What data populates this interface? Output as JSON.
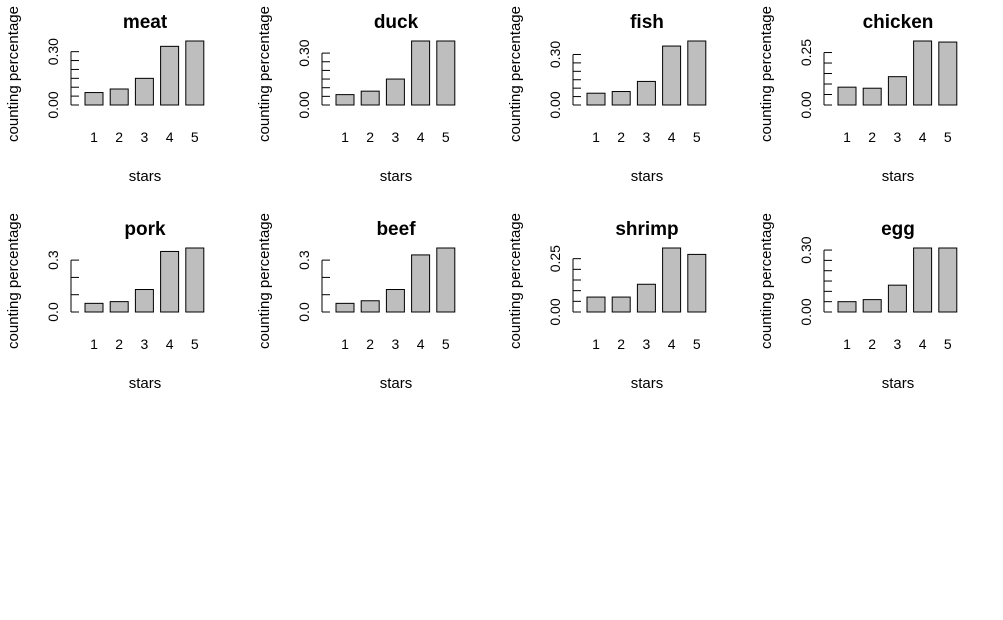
{
  "style": {
    "bar_fill": "#bebebe",
    "bar_stroke": "#000000",
    "background": "#ffffff"
  },
  "chart_data": [
    {
      "type": "bar",
      "title": "meat",
      "xlabel": "stars",
      "ylabel": "counting percentage",
      "categories": [
        "1",
        "2",
        "3",
        "4",
        "5"
      ],
      "values": [
        0.07,
        0.09,
        0.15,
        0.33,
        0.36
      ],
      "ylim": [
        0,
        0.36
      ],
      "yticks": [
        0,
        0.05,
        0.1,
        0.15,
        0.2,
        0.25,
        0.3
      ],
      "ytick_labels": [
        "0.00",
        "0.30"
      ],
      "ytick_label_values": [
        0,
        0.3
      ],
      "grid": false
    },
    {
      "type": "bar",
      "title": "duck",
      "xlabel": "stars",
      "ylabel": "counting percentage",
      "categories": [
        "1",
        "2",
        "3",
        "4",
        "5"
      ],
      "values": [
        0.06,
        0.08,
        0.15,
        0.37,
        0.37
      ],
      "ylim": [
        0,
        0.37
      ],
      "yticks": [
        0,
        0.05,
        0.1,
        0.15,
        0.2,
        0.25,
        0.3
      ],
      "ytick_labels": [
        "0.00",
        "0.30"
      ],
      "ytick_label_values": [
        0,
        0.3
      ],
      "grid": false
    },
    {
      "type": "bar",
      "title": "fish",
      "xlabel": "stars",
      "ylabel": "counting percentage",
      "categories": [
        "1",
        "2",
        "3",
        "4",
        "5"
      ],
      "values": [
        0.07,
        0.08,
        0.14,
        0.35,
        0.38
      ],
      "ylim": [
        0,
        0.38
      ],
      "yticks": [
        0,
        0.05,
        0.1,
        0.15,
        0.2,
        0.25,
        0.3
      ],
      "ytick_labels": [
        "0.00",
        "0.30"
      ],
      "ytick_label_values": [
        0,
        0.3
      ],
      "grid": false
    },
    {
      "type": "bar",
      "title": "chicken",
      "xlabel": "stars",
      "ylabel": "counting percentage",
      "categories": [
        "1",
        "2",
        "3",
        "4",
        "5"
      ],
      "values": [
        0.085,
        0.08,
        0.135,
        0.305,
        0.3
      ],
      "ylim": [
        0,
        0.305
      ],
      "yticks": [
        0,
        0.05,
        0.1,
        0.15,
        0.2,
        0.25
      ],
      "ytick_labels": [
        "0.00",
        "0.25"
      ],
      "ytick_label_values": [
        0,
        0.25
      ],
      "grid": false
    },
    {
      "type": "bar",
      "title": "pork",
      "xlabel": "stars",
      "ylabel": "counting percentage",
      "categories": [
        "1",
        "2",
        "3",
        "4",
        "5"
      ],
      "values": [
        0.05,
        0.06,
        0.13,
        0.35,
        0.37
      ],
      "ylim": [
        0,
        0.37
      ],
      "yticks": [
        0,
        0.1,
        0.2,
        0.3
      ],
      "ytick_labels": [
        "0.0",
        "0.3"
      ],
      "ytick_label_values": [
        0,
        0.3
      ],
      "grid": false
    },
    {
      "type": "bar",
      "title": "beef",
      "xlabel": "stars",
      "ylabel": "counting percentage",
      "categories": [
        "1",
        "2",
        "3",
        "4",
        "5"
      ],
      "values": [
        0.05,
        0.065,
        0.13,
        0.33,
        0.37
      ],
      "ylim": [
        0,
        0.37
      ],
      "yticks": [
        0,
        0.1,
        0.2,
        0.3
      ],
      "ytick_labels": [
        "0.0",
        "0.3"
      ],
      "ytick_label_values": [
        0,
        0.3
      ],
      "grid": false
    },
    {
      "type": "bar",
      "title": "shrimp",
      "xlabel": "stars",
      "ylabel": "counting percentage",
      "categories": [
        "1",
        "2",
        "3",
        "4",
        "5"
      ],
      "values": [
        0.07,
        0.07,
        0.13,
        0.3,
        0.27
      ],
      "ylim": [
        0,
        0.3
      ],
      "yticks": [
        0,
        0.05,
        0.1,
        0.15,
        0.2,
        0.25
      ],
      "ytick_labels": [
        "0.00",
        "0.25"
      ],
      "ytick_label_values": [
        0,
        0.25
      ],
      "grid": false
    },
    {
      "type": "bar",
      "title": "egg",
      "xlabel": "stars",
      "ylabel": "counting percentage",
      "categories": [
        "1",
        "2",
        "3",
        "4",
        "5"
      ],
      "values": [
        0.05,
        0.06,
        0.13,
        0.31,
        0.31
      ],
      "ylim": [
        0,
        0.31
      ],
      "yticks": [
        0,
        0.05,
        0.1,
        0.15,
        0.2,
        0.25,
        0.3
      ],
      "ytick_labels": [
        "0.00",
        "0.30"
      ],
      "ytick_label_values": [
        0,
        0.3
      ],
      "grid": false
    }
  ]
}
